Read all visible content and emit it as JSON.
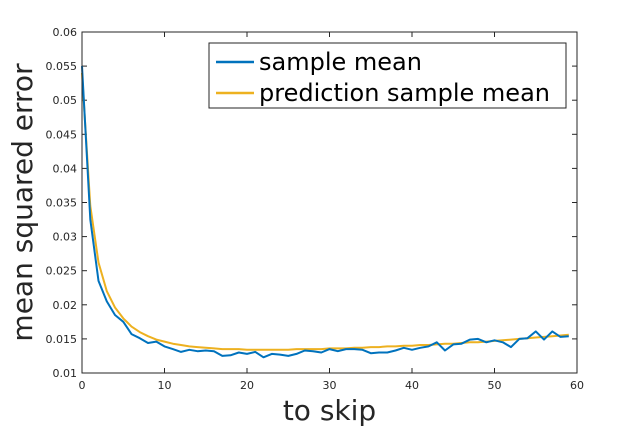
{
  "chart_data": {
    "type": "line",
    "xlabel": "to skip",
    "ylabel": "mean squared error",
    "xlim": [
      0,
      60
    ],
    "ylim": [
      0.01,
      0.06
    ],
    "xticks": [
      "0",
      "10",
      "20",
      "30",
      "40",
      "50",
      "60"
    ],
    "yticks": [
      "0.01",
      "0.015",
      "0.02",
      "0.025",
      "0.03",
      "0.035",
      "0.04",
      "0.045",
      "0.05",
      "0.055",
      "0.06"
    ],
    "grid": false,
    "legend_position": "top-right",
    "x": [
      0,
      1,
      2,
      3,
      4,
      5,
      6,
      7,
      8,
      9,
      10,
      11,
      12,
      13,
      14,
      15,
      16,
      17,
      18,
      19,
      20,
      21,
      22,
      23,
      24,
      25,
      26,
      27,
      28,
      29,
      30,
      31,
      32,
      33,
      34,
      35,
      36,
      37,
      38,
      39,
      40,
      41,
      42,
      43,
      44,
      45,
      46,
      47,
      48,
      49,
      50,
      51,
      52,
      53,
      54,
      55,
      56,
      57,
      58,
      59
    ],
    "series": [
      {
        "name": "sample mean",
        "color": "#0072BD",
        "values": [
          0.055,
          0.0325,
          0.0235,
          0.0205,
          0.0185,
          0.0175,
          0.0157,
          0.0151,
          0.0144,
          0.0146,
          0.0139,
          0.0135,
          0.0131,
          0.0134,
          0.0132,
          0.0133,
          0.0132,
          0.0125,
          0.0126,
          0.013,
          0.0128,
          0.0131,
          0.0123,
          0.0128,
          0.0127,
          0.0125,
          0.0128,
          0.0133,
          0.0132,
          0.013,
          0.0135,
          0.0132,
          0.0135,
          0.0135,
          0.0134,
          0.0129,
          0.013,
          0.013,
          0.0133,
          0.0137,
          0.0134,
          0.0137,
          0.0139,
          0.0145,
          0.0133,
          0.0142,
          0.0143,
          0.0149,
          0.015,
          0.0145,
          0.0148,
          0.0145,
          0.0138,
          0.015,
          0.0151,
          0.0161,
          0.0149,
          0.0161,
          0.0153,
          0.0154
        ]
      },
      {
        "name": "prediction sample mean",
        "color": "#EDB120",
        "values": [
          0.054,
          0.0345,
          0.0262,
          0.022,
          0.0196,
          0.018,
          0.0168,
          0.016,
          0.0154,
          0.0149,
          0.0146,
          0.0143,
          0.0141,
          0.0139,
          0.0138,
          0.0137,
          0.0136,
          0.0135,
          0.0135,
          0.0135,
          0.0134,
          0.0134,
          0.0134,
          0.0134,
          0.0134,
          0.0134,
          0.0135,
          0.0135,
          0.0135,
          0.0135,
          0.0136,
          0.0136,
          0.0136,
          0.0137,
          0.0137,
          0.0138,
          0.0138,
          0.0139,
          0.0139,
          0.014,
          0.014,
          0.0141,
          0.0141,
          0.0142,
          0.0143,
          0.0143,
          0.0144,
          0.0145,
          0.0145,
          0.0146,
          0.0147,
          0.0148,
          0.0149,
          0.015,
          0.0151,
          0.0152,
          0.0153,
          0.0154,
          0.0155,
          0.0156
        ]
      }
    ]
  }
}
